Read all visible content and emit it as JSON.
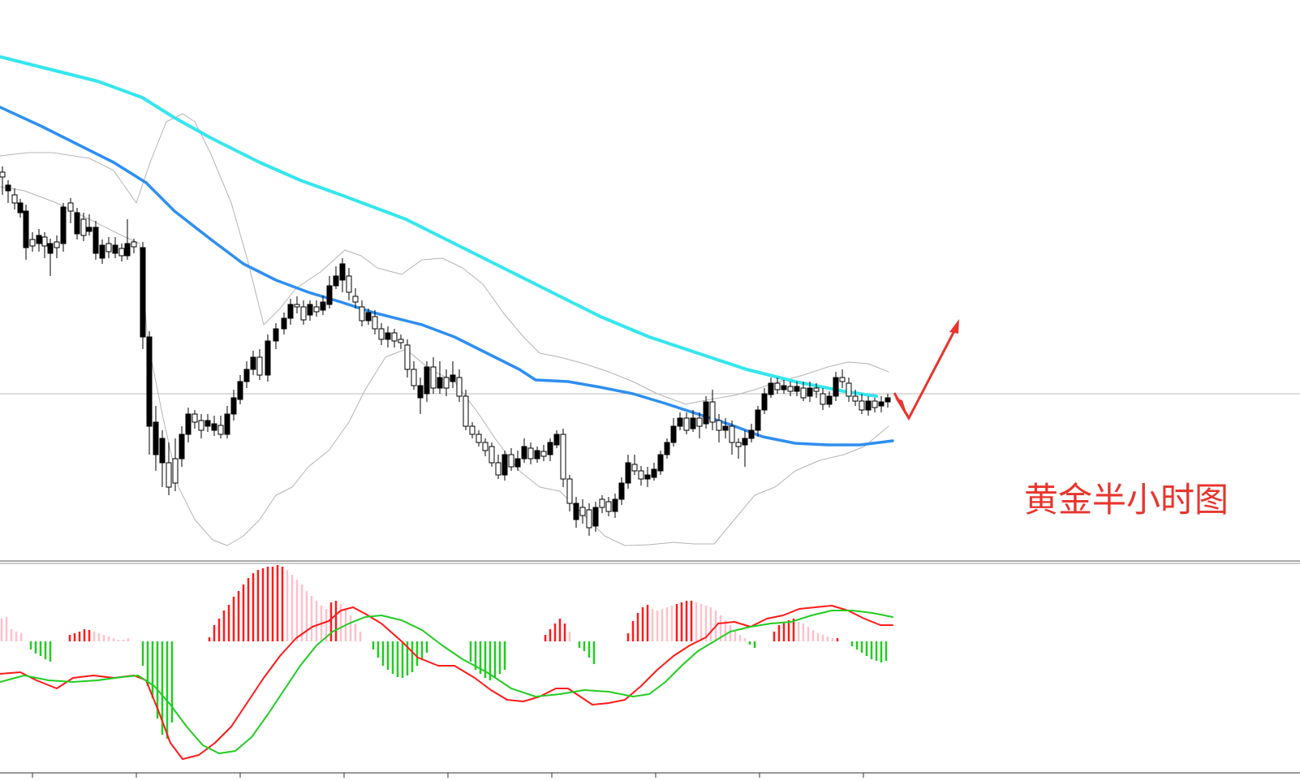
{
  "chart_data": {
    "type": "candlestick",
    "title": "黄金半小时图",
    "panels": [
      "price",
      "macd"
    ],
    "price_levels": {
      "reference_line": 0.5,
      "price_range": [
        0,
        1
      ]
    },
    "series": [
      {
        "name": "",
        "color": "#35e6ee"
      },
      {
        "name": "",
        "color": "#2e8ff0"
      },
      {
        "name": "",
        "color": "#b4b4b4"
      }
    ],
    "macd_series": [
      {
        "name": "",
        "color": "#ff1a1a"
      },
      {
        "name": "",
        "color": "#22cc22"
      }
    ],
    "annotation": {
      "type": "arrow",
      "color": "#e8352e",
      "direction": "down-then-up"
    }
  }
}
